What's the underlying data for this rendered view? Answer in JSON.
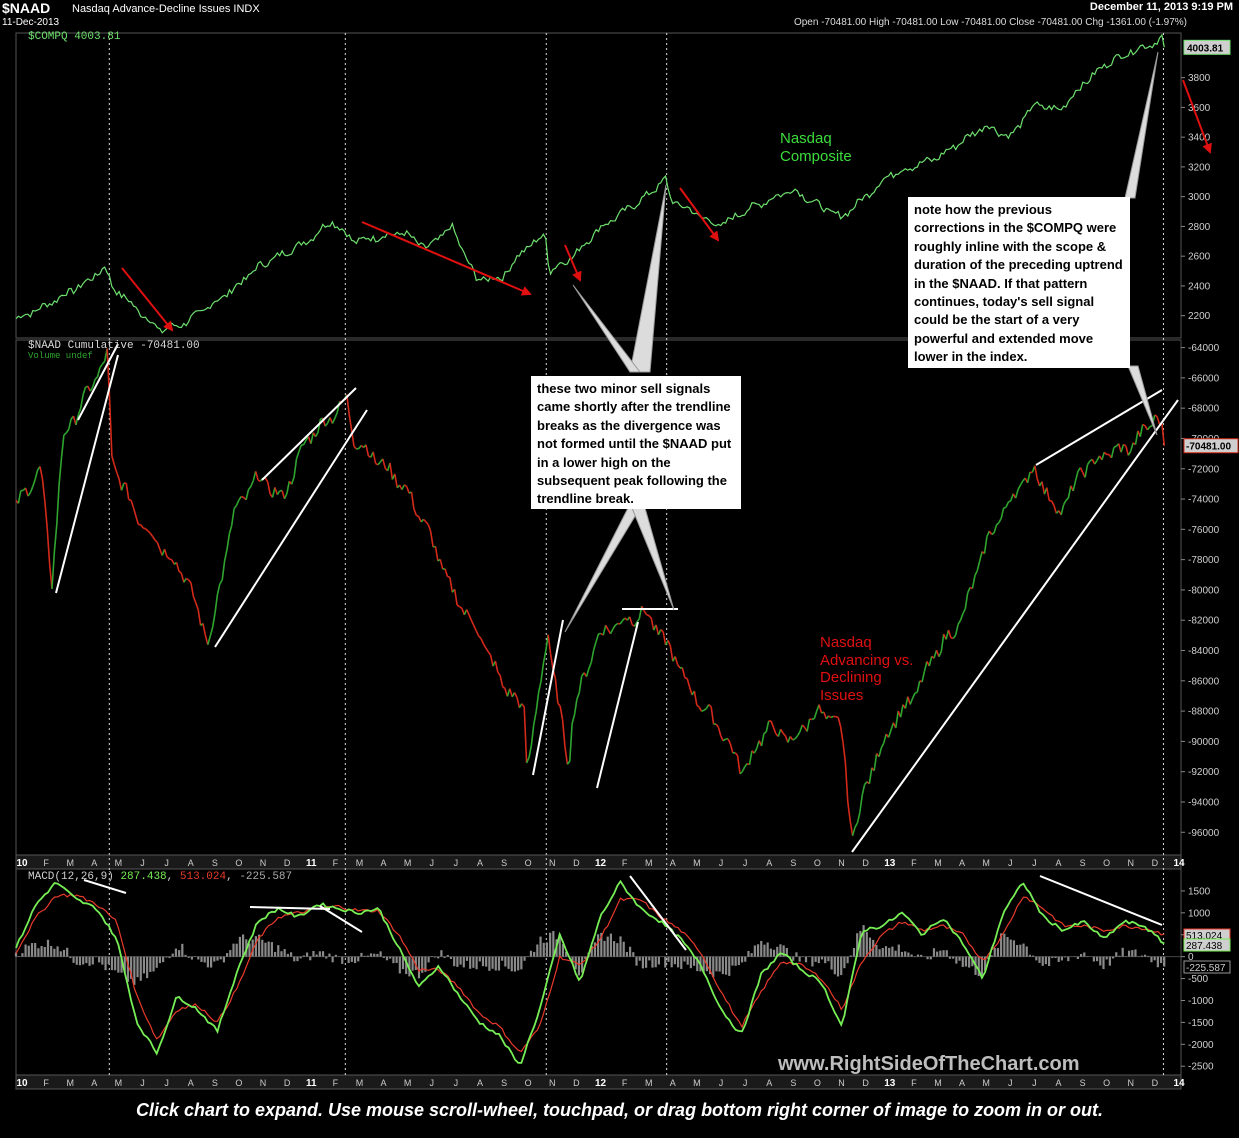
{
  "header": {
    "title": "$NAAD",
    "description": "Nasdaq Advance-Decline Issues INDX",
    "date": "11-Dec-2013",
    "timestamp": "December 11, 2013 9:19 PM",
    "ohlc": "Open -70481.00  High -70481.00  Low -70481.00  Close -70481.00  Chg -1361.00 (-1.97%)"
  },
  "colors": {
    "compq_line": "#6ee06e",
    "up_bar": "#2fa52f",
    "down_bar": "#d42a1a",
    "macd_line": "#77ee55",
    "signal_line": "#e83a2a",
    "histogram": "#8a8a8a",
    "annotation_arrow": "#e01010",
    "trendline": "#ffffff"
  },
  "annotations": {
    "note1": "these two minor sell signals came shortly after the trendline breaks as the divergence was not formed until the $NAAD put in a lower high  on the subsequent peak following the trendline break.",
    "note2": "note how the previous corrections in the $COMPQ were roughly inline with the scope & duration of the preceding uptrend in the $NAAD.  If that pattern continues, today's sell signal could be the start of a very powerful and extended move lower in the index.",
    "callout_compq": "Nasdaq\nComposite",
    "callout_naad": "Nasdaq\nAdvancing vs.\nDeclining\nIssues",
    "watermark": "www.RightSideOfTheChart.com",
    "footer": "Click chart to expand. Use mouse scroll-wheel, touchpad, or drag bottom right corner of image to zoom in or out."
  },
  "chart_data": [
    {
      "type": "line",
      "legend": "$COMPQ  4003.81",
      "last_value_label": "4003.81",
      "ylim": [
        2050,
        4100
      ],
      "y_ticks": [
        2200,
        2400,
        2600,
        2800,
        3000,
        3200,
        3400,
        3600,
        3800
      ],
      "x_dates": [
        "2010-01",
        "2010-02",
        "2010-04",
        "2010-04-23",
        "2010-05",
        "2010-07",
        "2010-08",
        "2010-10",
        "2010-11",
        "2011-01",
        "2011-02",
        "2011-03",
        "2011-05",
        "2011-06",
        "2011-07",
        "2011-08",
        "2011-09",
        "2011-10",
        "2011-10-27",
        "2011-11",
        "2011-12",
        "2012-01",
        "2012-03",
        "2012-03-26",
        "2012-04",
        "2012-06",
        "2012-07",
        "2012-09",
        "2012-10",
        "2012-11",
        "2012-12",
        "2013-01",
        "2013-03",
        "2013-05",
        "2013-06",
        "2013-07",
        "2013-08",
        "2013-09",
        "2013-10",
        "2013-11",
        "2013-12-01",
        "2013-12-09",
        "2013-12-11"
      ],
      "values": [
        2180,
        2250,
        2430,
        2530,
        2400,
        2100,
        2150,
        2380,
        2530,
        2700,
        2840,
        2700,
        2760,
        2650,
        2800,
        2450,
        2450,
        2650,
        2740,
        2500,
        2600,
        2780,
        3000,
        3120,
        2980,
        2800,
        2900,
        3050,
        2950,
        2860,
        3000,
        3150,
        3260,
        3480,
        3400,
        3620,
        3580,
        3760,
        3900,
        3980,
        4040,
        4070,
        4003.81
      ]
    },
    {
      "type": "bar",
      "legend": "$NAAD  Cumulative -70481.00",
      "sublegend": "Volume undef",
      "last_value_label": "-70481.00",
      "ylim": [
        -97500,
        -63500
      ],
      "y_ticks": [
        -64000,
        -66000,
        -68000,
        -70000,
        -72000,
        -74000,
        -76000,
        -78000,
        -80000,
        -82000,
        -84000,
        -86000,
        -88000,
        -90000,
        -92000,
        -94000,
        -96000
      ],
      "x_dates": [
        "2010-01",
        "2010-02",
        "2010-02-15",
        "2010-03",
        "2010-04",
        "2010-04-26",
        "2010-05",
        "2010-06",
        "2010-07",
        "2010-08",
        "2010-08-31",
        "2010-10",
        "2010-11",
        "2010-12",
        "2011-01",
        "2011-02",
        "2011-02-20",
        "2011-03",
        "2011-04",
        "2011-05",
        "2011-06",
        "2011-07",
        "2011-08",
        "2011-09",
        "2011-10",
        "2011-10-04",
        "2011-10-31",
        "2011-11",
        "2011-11-25",
        "2011-12",
        "2012-01",
        "2012-02",
        "2012-03",
        "2012-04",
        "2012-05",
        "2012-06",
        "2012-07",
        "2012-08",
        "2012-09",
        "2012-10",
        "2012-11",
        "2012-11-15",
        "2012-12",
        "2013-01",
        "2013-02",
        "2013-03",
        "2013-04",
        "2013-05",
        "2013-06",
        "2013-07",
        "2013-08",
        "2013-09",
        "2013-10",
        "2013-11",
        "2013-12-01",
        "2013-12-06",
        "2013-12-11"
      ],
      "values": [
        -74500,
        -72000,
        -79500,
        -70000,
        -67000,
        -64500,
        -71500,
        -75000,
        -77000,
        -79000,
        -83500,
        -75000,
        -72500,
        -74000,
        -70000,
        -68500,
        -67500,
        -70000,
        -71500,
        -73000,
        -76000,
        -80000,
        -82500,
        -86000,
        -88000,
        -92000,
        -82500,
        -84000,
        -91500,
        -88000,
        -83000,
        -82000,
        -81500,
        -84000,
        -87000,
        -89000,
        -92000,
        -89000,
        -90000,
        -88000,
        -89000,
        -96500,
        -93000,
        -89000,
        -87000,
        -84000,
        -82000,
        -77000,
        -74000,
        -72000,
        -75000,
        -72000,
        -71000,
        -70500,
        -68500,
        -69000,
        -70481
      ]
    },
    {
      "type": "line",
      "legend_macd": "MACD(12,26,9)",
      "legend_v1": "287.438",
      "legend_v2": "513.024",
      "legend_v3": "-225.587",
      "ylim": [
        -2700,
        2000
      ],
      "y_ticks": [
        1500,
        1000,
        500,
        0,
        -500,
        -1000,
        -1500,
        -2000,
        -2500
      ],
      "last_values": [
        "513.024",
        "287.438",
        "-225.587"
      ],
      "series": [
        {
          "values": [
            200,
            1200,
            1700,
            1300,
            1100,
            400,
            -1500,
            -2200,
            -900,
            -1200,
            -1700,
            -300,
            800,
            1100,
            900,
            1200,
            1100,
            1000,
            1100,
            200,
            -700,
            -200,
            -900,
            -1500,
            -1800,
            -2500,
            -1200,
            500,
            -600,
            900,
            1700,
            1100,
            800,
            400,
            -200,
            -1200,
            -1800,
            -400,
            100,
            -300,
            -600,
            -1600,
            600,
            700,
            1000,
            500,
            900,
            300,
            -500,
            1000,
            1700,
            900,
            600,
            800,
            400,
            800,
            700,
            300
          ]
        },
        {
          "values": [
            100,
            900,
            1400,
            1400,
            1200,
            800,
            -900,
            -1900,
            -1200,
            -1100,
            -1500,
            -700,
            400,
            900,
            1000,
            1100,
            1150,
            1050,
            1050,
            500,
            -300,
            -300,
            -700,
            -1300,
            -1600,
            -2200,
            -1600,
            0,
            -200,
            400,
            1300,
            1300,
            900,
            600,
            100,
            -800,
            -1600,
            -800,
            -100,
            -200,
            -500,
            -1200,
            -100,
            500,
            800,
            600,
            700,
            500,
            -100,
            500,
            1400,
            1100,
            700,
            700,
            600,
            700,
            650,
            513
          ]
        },
        {
          "values": [
            100,
            300,
            300,
            -100,
            -100,
            -400,
            -600,
            -300,
            300,
            -100,
            -200,
            400,
            400,
            200,
            -100,
            100,
            -50,
            -50,
            50,
            -300,
            -400,
            100,
            -200,
            -200,
            -200,
            -300,
            400,
            500,
            -400,
            500,
            400,
            -200,
            -100,
            -200,
            -300,
            -400,
            -200,
            400,
            200,
            -100,
            -100,
            -400,
            700,
            200,
            200,
            -100,
            200,
            -200,
            -400,
            500,
            300,
            -200,
            -100,
            100,
            -200,
            100,
            50,
            -226
          ]
        }
      ]
    }
  ],
  "x_axis": {
    "labels": [
      "10",
      "F",
      "M",
      "A",
      "M",
      "J",
      "J",
      "A",
      "S",
      "O",
      "N",
      "D",
      "11",
      "F",
      "M",
      "A",
      "M",
      "J",
      "J",
      "A",
      "S",
      "O",
      "N",
      "D",
      "12",
      "F",
      "M",
      "A",
      "M",
      "J",
      "J",
      "A",
      "S",
      "O",
      "N",
      "D",
      "13",
      "F",
      "M",
      "A",
      "M",
      "J",
      "J",
      "A",
      "S",
      "O",
      "N",
      "D",
      "14"
    ]
  }
}
